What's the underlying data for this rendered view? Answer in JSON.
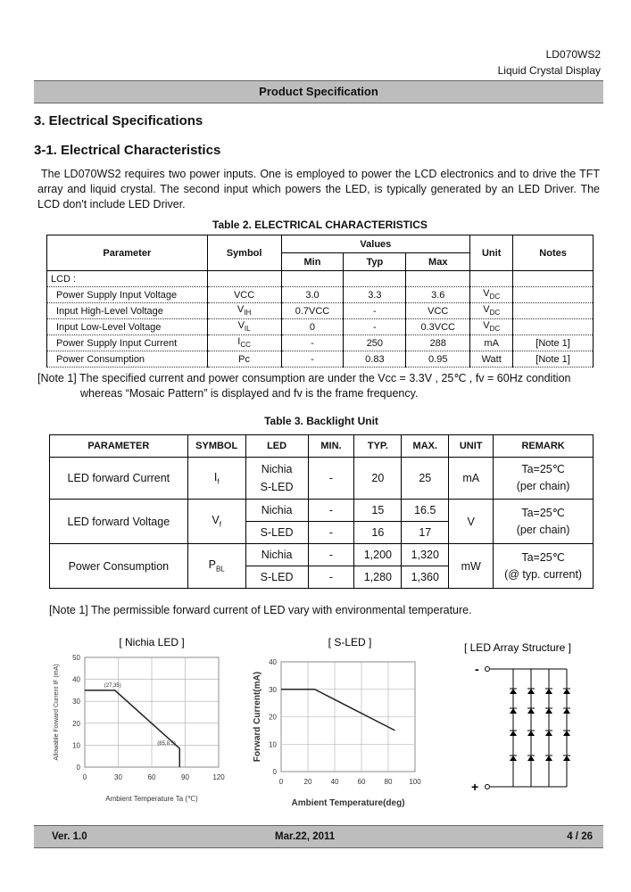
{
  "header": {
    "model": "LD070WS2",
    "product": "Liquid Crystal Display",
    "banner": "Product Specification"
  },
  "section": {
    "title": "3. Electrical Specifications",
    "subtitle": "3-1. Electrical Characteristics",
    "intro": "The LD070WS2 requires two power inputs.  One is employed to power the LCD electronics and to drive the TFT array and liquid crystal. The second input which powers the LED, is typically generated by an LED Driver. The LCD don't include LED Driver."
  },
  "table2": {
    "caption": "Table 2.  ELECTRICAL CHARACTERISTICS",
    "headers": {
      "parameter": "Parameter",
      "symbol": "Symbol",
      "values": "Values",
      "min": "Min",
      "typ": "Typ",
      "max": "Max",
      "unit": "Unit",
      "notes": "Notes"
    },
    "group": "LCD :",
    "rows": [
      {
        "parameter": "Power Supply Input Voltage",
        "symbol": "VCC",
        "min": "3.0",
        "typ": "3.3",
        "max": "3.6",
        "unit": "V",
        "unit_sub": "DC"
      },
      {
        "parameter": "Input High-Level Voltage",
        "symbol": "V",
        "symbol_sub": "IH",
        "min": "0.7VCC",
        "typ": "-",
        "max": "VCC",
        "unit": "V",
        "unit_sub": "DC"
      },
      {
        "parameter": "Input Low-Level Voltage",
        "symbol": "V",
        "symbol_sub": "IL",
        "min": "0",
        "typ": "-",
        "max": "0.3VCC",
        "unit": "V",
        "unit_sub": "DC"
      },
      {
        "parameter": "Power Supply Input Current",
        "symbol": "I",
        "symbol_sub": "CC",
        "min": "-",
        "typ": "250",
        "max": "288",
        "unit": "mA",
        "notes": "[Note 1]"
      },
      {
        "parameter": "Power Consumption",
        "symbol": "Pc",
        "min": "-",
        "typ": "0.83",
        "max": "0.95",
        "unit": "Watt",
        "notes": "[Note 1]"
      }
    ],
    "note": "[Note 1] The specified current and power consumption are under the Vcc = 3.3V , 25℃ , fv = 60Hz condition whereas “Mosaic Pattern” is displayed and fv is the frame frequency."
  },
  "table3": {
    "caption": "Table 3.  Backlight Unit",
    "headers": [
      "PARAMETER",
      "SYMBOL",
      "LED",
      "MIN.",
      "TYP.",
      "MAX.",
      "UNIT",
      "REMARK"
    ],
    "rows": [
      {
        "parameter": "LED forward Current",
        "symbol": "I",
        "symbol_sub": "f",
        "led": [
          "Nichia",
          "S-LED"
        ],
        "min": [
          "-"
        ],
        "typ": [
          "20"
        ],
        "max": [
          "25"
        ],
        "unit": "mA",
        "remark": [
          "Ta=25℃",
          "(per chain)"
        ]
      },
      {
        "parameter": "LED forward Voltage",
        "symbol": "V",
        "symbol_sub": "f",
        "led": [
          "Nichia",
          "S-LED"
        ],
        "min": [
          "-",
          "-"
        ],
        "typ": [
          "15",
          "16"
        ],
        "max": [
          "16.5",
          "17"
        ],
        "unit": "V",
        "remark": [
          "Ta=25℃",
          "(per chain)"
        ]
      },
      {
        "parameter": "Power Consumption",
        "symbol": "P",
        "symbol_sub": "BL",
        "led": [
          "Nichia",
          "S-LED"
        ],
        "min": [
          "-",
          "-"
        ],
        "typ": [
          "1,200",
          "1,280"
        ],
        "max": [
          "1,320",
          "1,360"
        ],
        "unit": "mW",
        "remark": [
          "Ta=25℃",
          "(@ typ. current)"
        ]
      }
    ],
    "note": "[Note 1] The permissible forward current of LED vary with environmental temperature."
  },
  "figures": [
    {
      "title": "[ Nichia LED ]",
      "y_label": "Allowable Forward Current IF (mA)",
      "x_label": "Ambient Temperature Ta (℃)",
      "xlim": [
        0,
        120
      ],
      "ylim": [
        0,
        50
      ],
      "xticks": [
        0,
        30,
        60,
        90,
        120
      ],
      "yticks": [
        0,
        10,
        20,
        30,
        40,
        50
      ],
      "x": [
        0,
        27,
        85,
        85
      ],
      "y": [
        35,
        35,
        8.5,
        0
      ],
      "annotations": [
        "(27,35)",
        "(85,8.5)"
      ]
    },
    {
      "title": "[ S-LED ]",
      "y_label": "Forward Current(mA)",
      "x_label": "Ambient Temperature(deg)",
      "xlim": [
        0,
        100
      ],
      "ylim": [
        0,
        40
      ],
      "xticks": [
        0,
        20,
        40,
        60,
        80,
        100
      ],
      "yticks": [
        0,
        10,
        20,
        30,
        40
      ],
      "x": [
        0,
        25,
        85
      ],
      "y": [
        30,
        30,
        15
      ]
    }
  ],
  "array": {
    "title": "[ LED Array  Structure ]",
    "minus": "-",
    "plus": "+"
  },
  "footer": {
    "version": "Ver. 1.0",
    "date": "Mar.22, 2011",
    "page": "4 / 26"
  }
}
